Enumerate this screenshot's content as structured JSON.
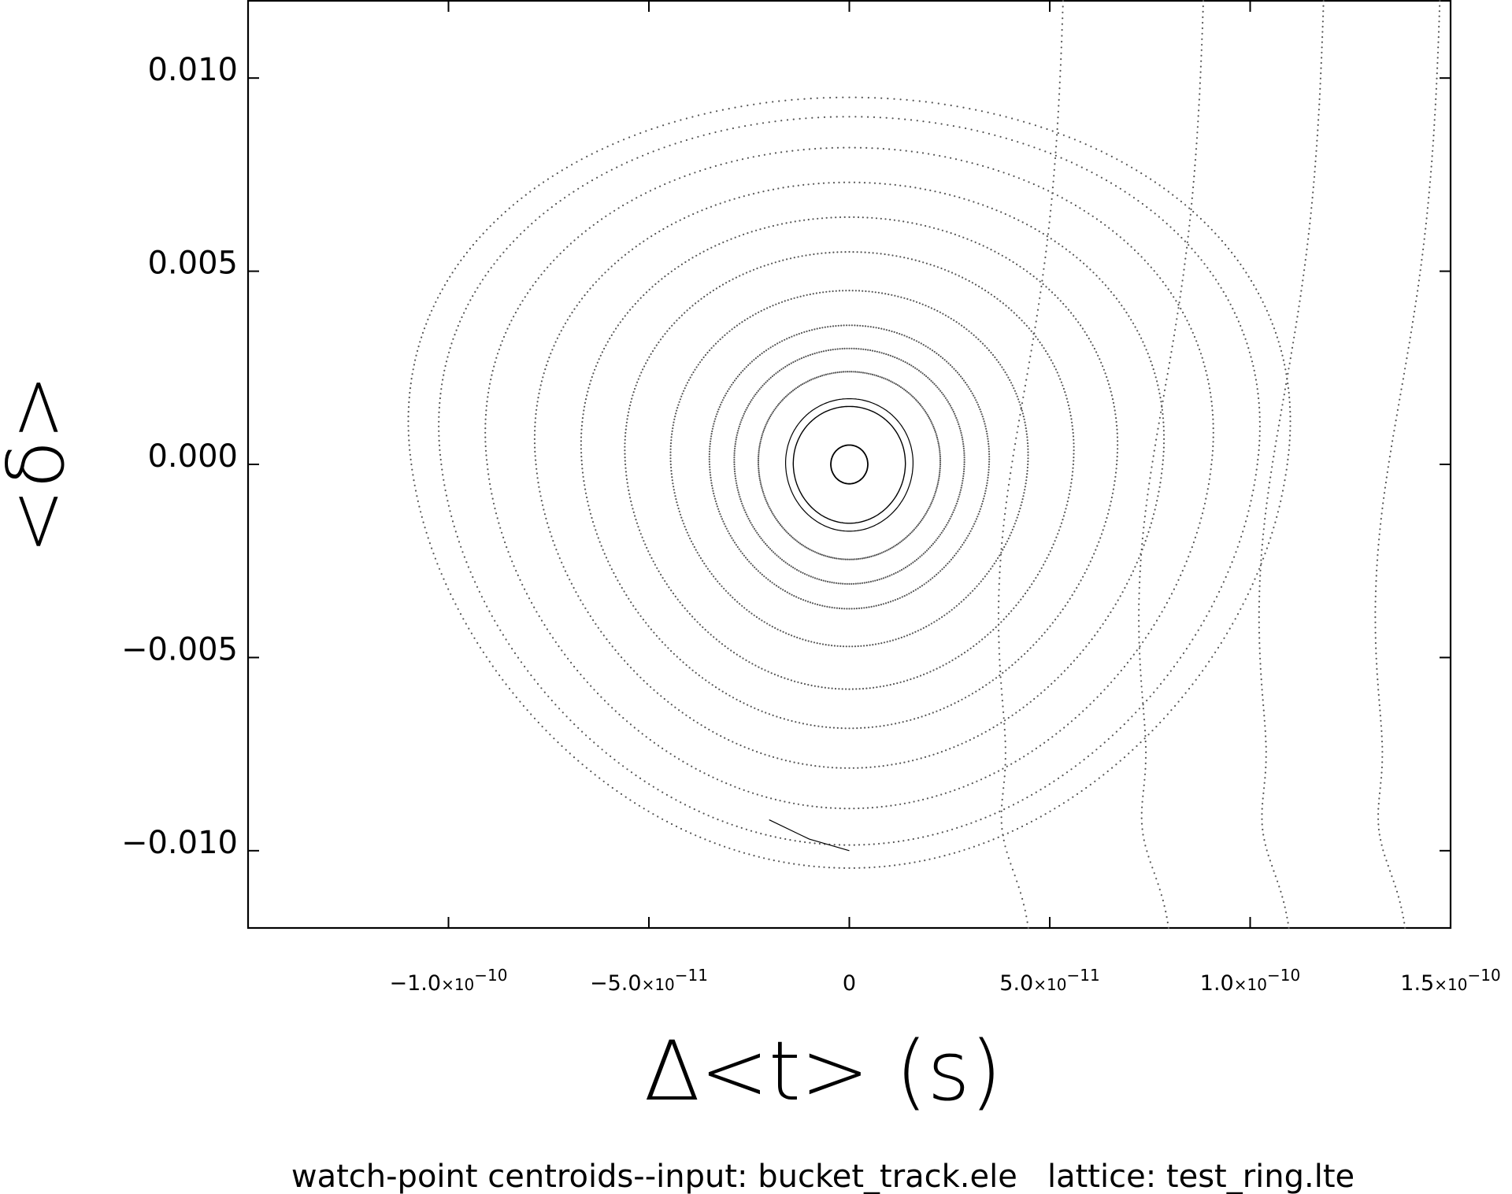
{
  "chart_data": {
    "type": "scatter",
    "title": "",
    "xlabel": "Δ<t> (s)",
    "ylabel": "<δ>",
    "caption": "watch-point centroids--input: bucket_track.ele   lattice: test_ring.lte",
    "xlim": [
      -1.5e-10,
      1.5e-10
    ],
    "ylim": [
      -0.012,
      0.012
    ],
    "grid": false,
    "x_ticks": [
      {
        "value": -1e-10,
        "mantissa": "-1.0",
        "exponent": "-10"
      },
      {
        "value": -5e-11,
        "mantissa": "-5.0",
        "exponent": "-11"
      },
      {
        "value": 0,
        "mantissa": "0",
        "exponent": ""
      },
      {
        "value": 5e-11,
        "mantissa": "5.0",
        "exponent": "-11"
      },
      {
        "value": 1e-10,
        "mantissa": "1.0",
        "exponent": "-10"
      },
      {
        "value": 1.5e-10,
        "mantissa": "1.5",
        "exponent": "-10"
      }
    ],
    "y_ticks": [
      {
        "value": 0.01,
        "label": "0.010"
      },
      {
        "value": 0.005,
        "label": "0.005"
      },
      {
        "value": 0.0,
        "label": "0.000"
      },
      {
        "value": -0.005,
        "label": "-0.005"
      },
      {
        "value": -0.01,
        "label": "-0.010"
      }
    ],
    "series": [
      {
        "kind": "closed-orbit",
        "amplitude_y": 0.0005,
        "points": 220,
        "width": 1.8,
        "dotted": false
      },
      {
        "kind": "closed-orbit",
        "amplitude_y": 0.0015,
        "points": 240,
        "width": 1.4,
        "dotted": false
      },
      {
        "kind": "closed-orbit",
        "amplitude_y": 0.0017,
        "points": 260,
        "width": 1.2,
        "dotted": false
      },
      {
        "kind": "closed-orbit",
        "amplitude_y": 0.0024,
        "points": 300,
        "width": 1.0,
        "dotted": true
      },
      {
        "kind": "closed-orbit",
        "amplitude_y": 0.003,
        "points": 320,
        "width": 1.0,
        "dotted": true
      },
      {
        "kind": "closed-orbit",
        "amplitude_y": 0.0036,
        "points": 340,
        "width": 1.0,
        "dotted": true
      },
      {
        "kind": "closed-orbit",
        "amplitude_y": 0.0045,
        "points": 360,
        "width": 1.0,
        "dotted": true
      },
      {
        "kind": "closed-orbit",
        "amplitude_y": 0.0055,
        "points": 380,
        "width": 1.0,
        "dotted": true
      },
      {
        "kind": "closed-orbit",
        "amplitude_y": 0.0064,
        "points": 400,
        "width": 1.0,
        "dotted": true
      },
      {
        "kind": "closed-orbit",
        "amplitude_y": 0.0073,
        "points": 420,
        "width": 1.0,
        "dotted": true
      },
      {
        "kind": "closed-orbit",
        "amplitude_y": 0.0082,
        "points": 440,
        "width": 1.0,
        "dotted": true
      },
      {
        "kind": "closed-orbit",
        "amplitude_y": 0.009,
        "points": 460,
        "width": 1.0,
        "dotted": true
      },
      {
        "kind": "closed-orbit",
        "amplitude_y": 0.0095,
        "points": 480,
        "width": 1.0,
        "dotted": true
      },
      {
        "kind": "open-orbit",
        "x0": 5.1e-11,
        "points": 160
      },
      {
        "kind": "open-orbit",
        "x0": 8.6e-11,
        "points": 170
      },
      {
        "kind": "open-orbit",
        "x0": 1.16e-10,
        "points": 180
      },
      {
        "kind": "open-orbit",
        "x0": 1.45e-10,
        "points": 180
      },
      {
        "kind": "tail",
        "x": [
          -2e-11,
          -1e-11,
          0
        ],
        "y": [
          -0.0092,
          -0.0097,
          -0.01
        ]
      }
    ]
  }
}
